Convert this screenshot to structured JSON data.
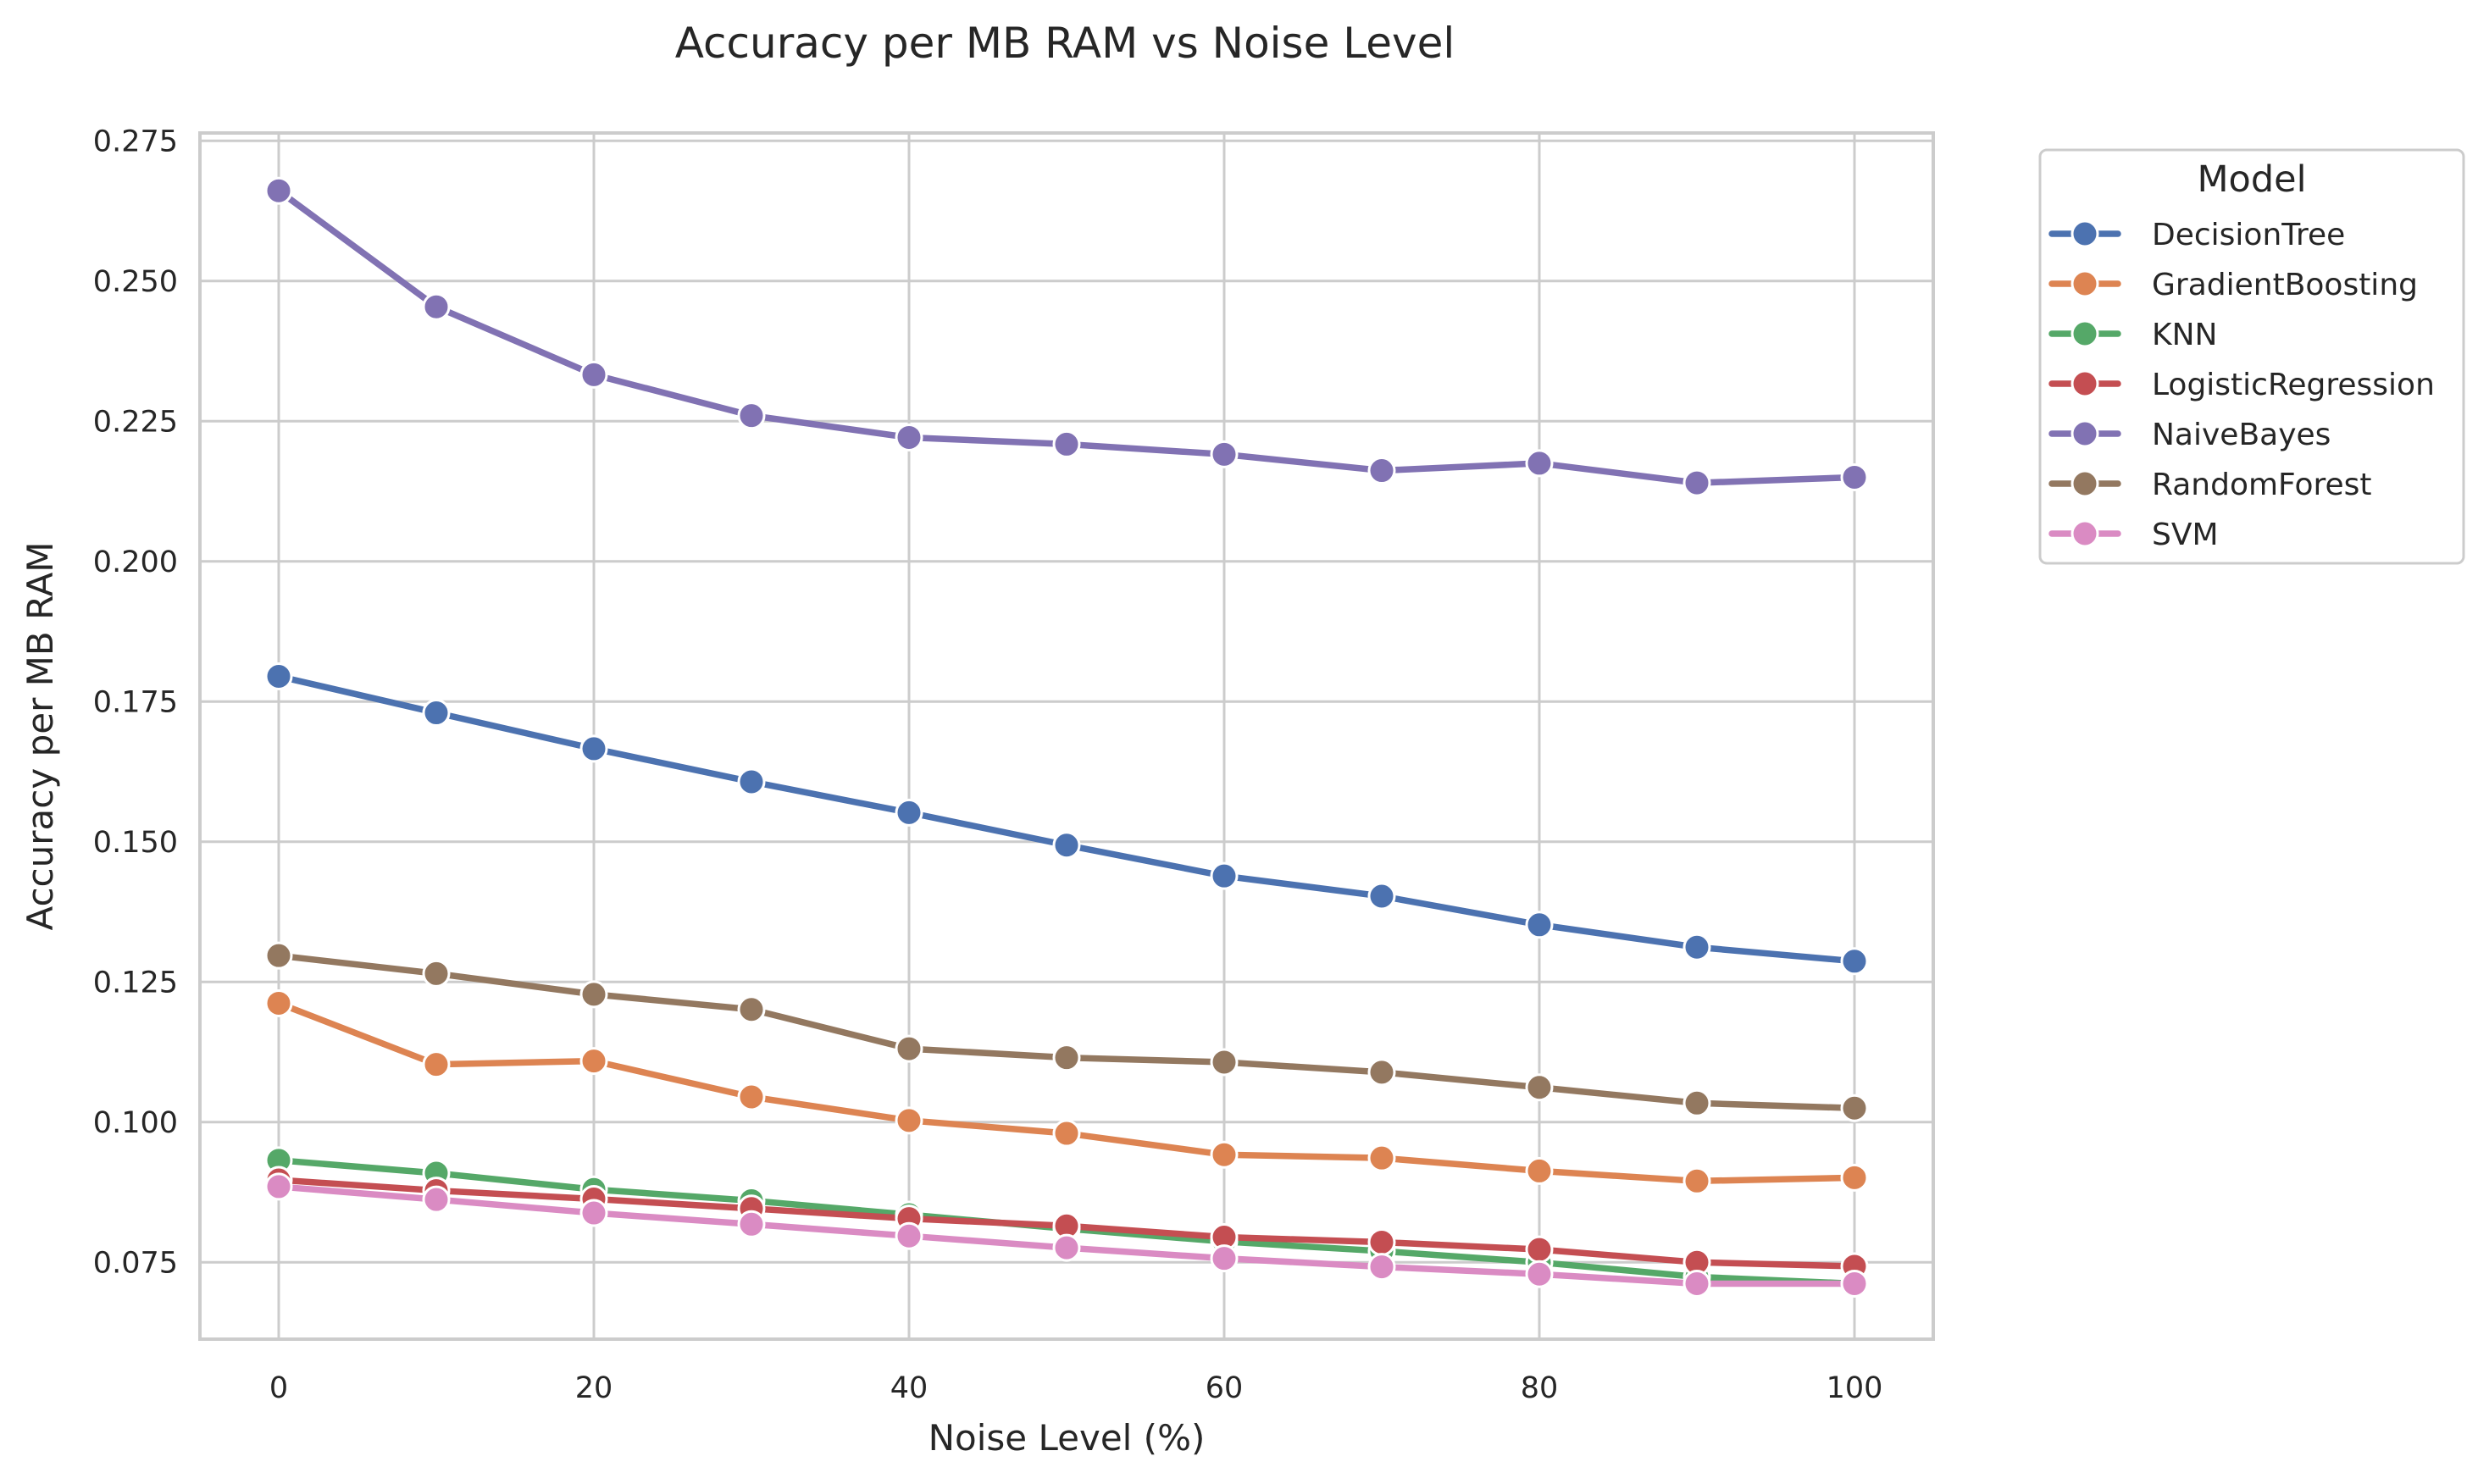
{
  "chart_data": {
    "type": "line",
    "title": "Accuracy per MB RAM vs Noise Level",
    "xlabel": "Noise Level (%)",
    "ylabel": "Accuracy per MB RAM",
    "xlim": [
      -5,
      105
    ],
    "ylim": [
      0.0613,
      0.2764
    ],
    "x_ticks": [
      0,
      20,
      40,
      60,
      80,
      100
    ],
    "y_ticks": [
      0.075,
      0.1,
      0.125,
      0.15,
      0.175,
      0.2,
      0.225,
      0.25,
      0.275
    ],
    "y_tick_labels": [
      "0.075",
      "0.100",
      "0.125",
      "0.150",
      "0.175",
      "0.200",
      "0.225",
      "0.250",
      "0.275"
    ],
    "grid": true,
    "legend": {
      "title": "Model",
      "position": "outside-right"
    },
    "x": [
      0,
      10,
      20,
      30,
      40,
      50,
      60,
      70,
      80,
      90,
      100
    ],
    "series": [
      {
        "name": "DecisionTree",
        "color": "#4c72b0",
        "values": [
          0.1795,
          0.173,
          0.1666,
          0.1607,
          0.1552,
          0.1494,
          0.1439,
          0.1403,
          0.1352,
          0.1312,
          0.1287
        ]
      },
      {
        "name": "GradientBoosting",
        "color": "#dd8452",
        "values": [
          0.1212,
          0.1103,
          0.1109,
          0.1045,
          0.1003,
          0.098,
          0.0942,
          0.0936,
          0.0913,
          0.0895,
          0.0901
        ]
      },
      {
        "name": "KNN",
        "color": "#55a868",
        "values": [
          0.0932,
          0.0909,
          0.088,
          0.086,
          0.0835,
          0.081,
          0.0787,
          0.077,
          0.075,
          0.0724,
          0.0712
        ]
      },
      {
        "name": "LogisticRegression",
        "color": "#c44e52",
        "values": [
          0.0897,
          0.0878,
          0.0863,
          0.0846,
          0.0828,
          0.0815,
          0.0795,
          0.0786,
          0.0773,
          0.075,
          0.0743
        ]
      },
      {
        "name": "NaiveBayes",
        "color": "#8172b3",
        "values": [
          0.2661,
          0.2454,
          0.2333,
          0.226,
          0.2221,
          0.2209,
          0.2191,
          0.2162,
          0.2175,
          0.214,
          0.215
        ]
      },
      {
        "name": "RandomForest",
        "color": "#937860",
        "values": [
          0.1297,
          0.1265,
          0.1228,
          0.1201,
          0.1131,
          0.1115,
          0.1107,
          0.1089,
          0.1062,
          0.1034,
          0.1025
        ]
      },
      {
        "name": "SVM",
        "color": "#da8bc3",
        "values": [
          0.0885,
          0.0862,
          0.0838,
          0.0818,
          0.0797,
          0.0776,
          0.0757,
          0.0742,
          0.0729,
          0.0712,
          0.0712
        ]
      }
    ]
  }
}
